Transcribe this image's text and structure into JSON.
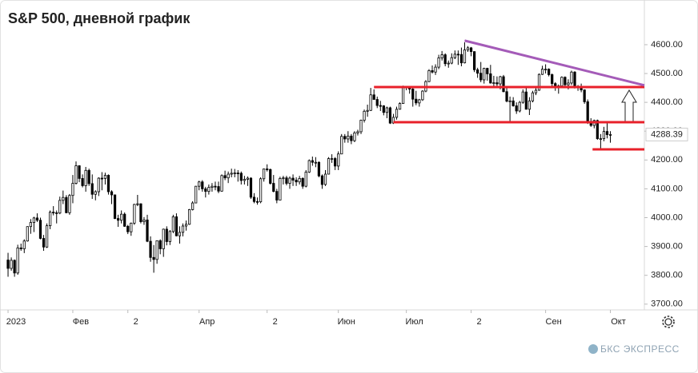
{
  "chart_data": {
    "type": "candlestick",
    "title": "S&P 500, дневной график",
    "watermark": "БКС ЭКСПРЕСС",
    "up_color": "#ffffff",
    "down_color": "#000000",
    "wick_color": "#000000",
    "xlim": [
      -1,
      196.5
    ],
    "ylim": [
      3680,
      4755
    ],
    "xticks": [
      {
        "value": 0,
        "label": "2023"
      },
      {
        "value": 20,
        "label": "Фев"
      },
      {
        "value": 37,
        "label": "2"
      },
      {
        "value": 59,
        "label": "Апр"
      },
      {
        "value": 80,
        "label": "2"
      },
      {
        "value": 102,
        "label": "Июн"
      },
      {
        "value": 123,
        "label": "Июл"
      },
      {
        "value": 143,
        "label": "2"
      },
      {
        "value": 166,
        "label": "Сен"
      },
      {
        "value": 186,
        "label": "Окт"
      }
    ],
    "yticks": [
      {
        "value": 3700,
        "label": "3700.00"
      },
      {
        "value": 3800,
        "label": "3800.00"
      },
      {
        "value": 3900,
        "label": "3900.00"
      },
      {
        "value": 4000,
        "label": "4000.00"
      },
      {
        "value": 4100,
        "label": "4100.00"
      },
      {
        "value": 4200,
        "label": "4200.00"
      },
      {
        "value": 4300,
        "label": "4300.00"
      },
      {
        "value": 4400,
        "label": "4400.00"
      },
      {
        "value": 4500,
        "label": "4500.00"
      },
      {
        "value": 4600,
        "label": "4600.00"
      }
    ],
    "lines": [
      {
        "color": "#e8202a",
        "x": [
          113,
          196.5
        ],
        "y": [
          4453,
          4453
        ]
      },
      {
        "color": "#e8202a",
        "x": [
          119,
          196.5
        ],
        "y": [
          4331,
          4331
        ]
      },
      {
        "color": "#e8202a",
        "x": [
          180.5,
          196.5
        ],
        "y": [
          4237,
          4237
        ]
      },
      {
        "color": "#a45bb8",
        "x": [
          141,
          196.5
        ],
        "y": [
          4614,
          4459
        ]
      }
    ],
    "ohlc": [
      [
        3853,
        3878,
        3795,
        3824
      ],
      [
        3824,
        3862,
        3816,
        3852
      ],
      [
        3852,
        3855,
        3795,
        3808
      ],
      [
        3808,
        3906,
        3802,
        3895
      ],
      [
        3895,
        3910,
        3885,
        3892
      ],
      [
        3892,
        3925,
        3877,
        3919
      ],
      [
        3919,
        3970,
        3917,
        3969
      ],
      [
        3969,
        3995,
        3944,
        3983
      ],
      [
        3983,
        4003,
        3950,
        3999
      ],
      [
        3999,
        4015,
        3985,
        3991
      ],
      [
        3991,
        4000,
        3925,
        3928
      ],
      [
        3928,
        3940,
        3885,
        3898
      ],
      [
        3898,
        3980,
        3895,
        3972
      ],
      [
        3972,
        4025,
        3960,
        4019
      ],
      [
        4019,
        4040,
        4008,
        4017
      ],
      [
        4017,
        4025,
        3980,
        4016
      ],
      [
        4016,
        4073,
        4012,
        4060
      ],
      [
        4060,
        4094,
        4047,
        4070
      ],
      [
        4070,
        4078,
        4015,
        4017
      ],
      [
        4017,
        4082,
        4010,
        4077
      ],
      [
        4077,
        4148,
        4050,
        4119
      ],
      [
        4119,
        4195,
        4115,
        4180
      ],
      [
        4180,
        4182,
        4123,
        4136
      ],
      [
        4136,
        4150,
        4105,
        4111
      ],
      [
        4111,
        4176,
        4090,
        4164
      ],
      [
        4164,
        4170,
        4110,
        4118
      ],
      [
        4118,
        4150,
        4065,
        4081
      ],
      [
        4081,
        4095,
        4060,
        4090
      ],
      [
        4090,
        4140,
        4075,
        4137
      ],
      [
        4137,
        4158,
        4095,
        4136
      ],
      [
        4136,
        4156,
        4115,
        4147
      ],
      [
        4147,
        4150,
        4080,
        4090
      ],
      [
        4090,
        4095,
        4047,
        4079
      ],
      [
        4079,
        4080,
        3995,
        3997
      ],
      [
        3997,
        4010,
        3968,
        3991
      ],
      [
        3991,
        4025,
        3980,
        4012
      ],
      [
        4012,
        4018,
        3968,
        3970
      ],
      [
        3970,
        3975,
        3943,
        3951
      ],
      [
        3951,
        3983,
        3937,
        3981
      ],
      [
        3981,
        4048,
        3975,
        4046
      ],
      [
        4046,
        4079,
        4040,
        4048
      ],
      [
        4048,
        4050,
        3980,
        3986
      ],
      [
        3986,
        4002,
        3975,
        3992
      ],
      [
        3992,
        4010,
        3915,
        3918
      ],
      [
        3918,
        3935,
        3847,
        3862
      ],
      [
        3862,
        3905,
        3809,
        3855
      ],
      [
        3855,
        3921,
        3840,
        3920
      ],
      [
        3920,
        3925,
        3873,
        3892
      ],
      [
        3892,
        3962,
        3864,
        3960
      ],
      [
        3960,
        3970,
        3904,
        3917
      ],
      [
        3917,
        3957,
        3905,
        3952
      ],
      [
        3952,
        4010,
        3946,
        4003
      ],
      [
        4003,
        4015,
        3935,
        3937
      ],
      [
        3937,
        3970,
        3910,
        3949
      ],
      [
        3949,
        3980,
        3935,
        3971
      ],
      [
        3971,
        3990,
        3955,
        3977
      ],
      [
        3977,
        4030,
        3975,
        4028
      ],
      [
        4028,
        4057,
        4025,
        4051
      ],
      [
        4051,
        4110,
        4050,
        4109
      ],
      [
        4109,
        4128,
        4095,
        4124
      ],
      [
        4124,
        4130,
        4090,
        4100
      ],
      [
        4100,
        4107,
        4070,
        4091
      ],
      [
        4091,
        4115,
        4080,
        4105
      ],
      [
        4105,
        4120,
        4090,
        4109
      ],
      [
        4109,
        4125,
        4095,
        4108
      ],
      [
        4108,
        4125,
        4085,
        4092
      ],
      [
        4092,
        4150,
        4090,
        4146
      ],
      [
        4146,
        4163,
        4130,
        4138
      ],
      [
        4138,
        4160,
        4120,
        4151
      ],
      [
        4151,
        4170,
        4140,
        4154
      ],
      [
        4154,
        4169,
        4140,
        4155
      ],
      [
        4155,
        4165,
        4125,
        4154
      ],
      [
        4154,
        4160,
        4115,
        4129
      ],
      [
        4129,
        4145,
        4115,
        4133
      ],
      [
        4133,
        4143,
        4110,
        4137
      ],
      [
        4137,
        4140,
        4065,
        4071
      ],
      [
        4071,
        4085,
        4050,
        4056
      ],
      [
        4056,
        4070,
        4045,
        4055
      ],
      [
        4055,
        4140,
        4050,
        4135
      ],
      [
        4135,
        4170,
        4125,
        4169
      ],
      [
        4169,
        4185,
        4160,
        4167
      ],
      [
        4167,
        4170,
        4115,
        4119
      ],
      [
        4119,
        4148,
        4088,
        4091
      ],
      [
        4091,
        4100,
        4050,
        4061
      ],
      [
        4061,
        4142,
        4060,
        4136
      ],
      [
        4136,
        4145,
        4115,
        4138
      ],
      [
        4138,
        4145,
        4112,
        4119
      ],
      [
        4119,
        4143,
        4100,
        4137
      ],
      [
        4137,
        4150,
        4110,
        4130
      ],
      [
        4130,
        4140,
        4110,
        4124
      ],
      [
        4124,
        4145,
        4115,
        4136
      ],
      [
        4136,
        4140,
        4100,
        4109
      ],
      [
        4109,
        4165,
        4105,
        4158
      ],
      [
        4158,
        4202,
        4155,
        4198
      ],
      [
        4198,
        4212,
        4180,
        4192
      ],
      [
        4192,
        4210,
        4175,
        4192
      ],
      [
        4192,
        4195,
        4140,
        4145
      ],
      [
        4145,
        4150,
        4100,
        4115
      ],
      [
        4115,
        4165,
        4110,
        4151
      ],
      [
        4151,
        4210,
        4150,
        4205
      ],
      [
        4205,
        4220,
        4190,
        4205
      ],
      [
        4205,
        4210,
        4165,
        4179
      ],
      [
        4179,
        4230,
        4165,
        4221
      ],
      [
        4221,
        4290,
        4220,
        4282
      ],
      [
        4282,
        4290,
        4260,
        4273
      ],
      [
        4273,
        4300,
        4260,
        4283
      ],
      [
        4283,
        4290,
        4255,
        4267
      ],
      [
        4267,
        4300,
        4262,
        4294
      ],
      [
        4294,
        4305,
        4285,
        4298
      ],
      [
        4298,
        4340,
        4290,
        4338
      ],
      [
        4338,
        4375,
        4330,
        4369
      ],
      [
        4369,
        4392,
        4350,
        4372
      ],
      [
        4372,
        4450,
        4370,
        4426
      ],
      [
        4426,
        4445,
        4410,
        4410
      ],
      [
        4410,
        4420,
        4380,
        4389
      ],
      [
        4389,
        4405,
        4370,
        4388
      ],
      [
        4388,
        4390,
        4355,
        4365
      ],
      [
        4365,
        4385,
        4345,
        4381
      ],
      [
        4381,
        4385,
        4325,
        4328
      ],
      [
        4328,
        4360,
        4325,
        4348
      ],
      [
        4348,
        4385,
        4340,
        4376
      ],
      [
        4376,
        4400,
        4375,
        4396
      ],
      [
        4396,
        4458,
        4395,
        4450
      ],
      [
        4450,
        4456,
        4442,
        4455
      ],
      [
        4455,
        4457,
        4430,
        4446
      ],
      [
        4446,
        4450,
        4385,
        4411
      ],
      [
        4411,
        4440,
        4390,
        4398
      ],
      [
        4398,
        4412,
        4385,
        4409
      ],
      [
        4409,
        4442,
        4405,
        4439
      ],
      [
        4439,
        4477,
        4435,
        4472
      ],
      [
        4472,
        4515,
        4470,
        4510
      ],
      [
        4510,
        4528,
        4500,
        4505
      ],
      [
        4505,
        4532,
        4495,
        4522
      ],
      [
        4522,
        4565,
        4515,
        4554
      ],
      [
        4554,
        4578,
        4545,
        4565
      ],
      [
        4565,
        4570,
        4525,
        4534
      ],
      [
        4534,
        4545,
        4520,
        4536
      ],
      [
        4536,
        4570,
        4532,
        4555
      ],
      [
        4555,
        4580,
        4550,
        4567
      ],
      [
        4567,
        4580,
        4530,
        4566
      ],
      [
        4566,
        4590,
        4525,
        4537
      ],
      [
        4537,
        4608,
        4535,
        4582
      ],
      [
        4582,
        4595,
        4575,
        4589
      ],
      [
        4589,
        4592,
        4560,
        4576
      ],
      [
        4576,
        4577,
        4505,
        4513
      ],
      [
        4513,
        4520,
        4485,
        4501
      ],
      [
        4501,
        4540,
        4470,
        4478
      ],
      [
        4478,
        4520,
        4465,
        4518
      ],
      [
        4518,
        4520,
        4475,
        4499
      ],
      [
        4499,
        4530,
        4465,
        4467
      ],
      [
        4467,
        4492,
        4455,
        4468
      ],
      [
        4468,
        4490,
        4450,
        4464
      ],
      [
        4464,
        4492,
        4445,
        4489
      ],
      [
        4489,
        4495,
        4435,
        4437
      ],
      [
        4437,
        4450,
        4400,
        4404
      ],
      [
        4404,
        4420,
        4335,
        4405
      ],
      [
        4405,
        4418,
        4385,
        4388
      ],
      [
        4388,
        4400,
        4360,
        4370
      ],
      [
        4370,
        4405,
        4365,
        4400
      ],
      [
        4400,
        4445,
        4395,
        4436
      ],
      [
        4436,
        4455,
        4375,
        4376
      ],
      [
        4376,
        4418,
        4356,
        4405
      ],
      [
        4405,
        4440,
        4400,
        4433
      ],
      [
        4433,
        4450,
        4425,
        4442
      ],
      [
        4442,
        4500,
        4440,
        4497
      ],
      [
        4497,
        4527,
        4495,
        4515
      ],
      [
        4515,
        4532,
        4500,
        4515
      ],
      [
        4515,
        4518,
        4490,
        4496
      ],
      [
        4496,
        4500,
        4455,
        4465
      ],
      [
        4465,
        4470,
        4440,
        4451
      ],
      [
        4451,
        4462,
        4430,
        4457
      ],
      [
        4457,
        4490,
        4455,
        4487
      ],
      [
        4487,
        4490,
        4455,
        4461
      ],
      [
        4461,
        4480,
        4445,
        4467
      ],
      [
        4467,
        4510,
        4460,
        4505
      ],
      [
        4505,
        4508,
        4448,
        4450
      ],
      [
        4450,
        4460,
        4440,
        4454
      ],
      [
        4454,
        4465,
        4435,
        4443
      ],
      [
        4443,
        4445,
        4395,
        4402
      ],
      [
        4402,
        4410,
        4325,
        4330
      ],
      [
        4330,
        4345,
        4315,
        4320
      ],
      [
        4320,
        4340,
        4310,
        4337
      ],
      [
        4337,
        4340,
        4270,
        4274
      ],
      [
        4274,
        4290,
        4240,
        4274
      ],
      [
        4274,
        4315,
        4265,
        4299
      ],
      [
        4299,
        4333,
        4275,
        4288
      ],
      [
        4288,
        4300,
        4260,
        4288.39
      ]
    ]
  }
}
